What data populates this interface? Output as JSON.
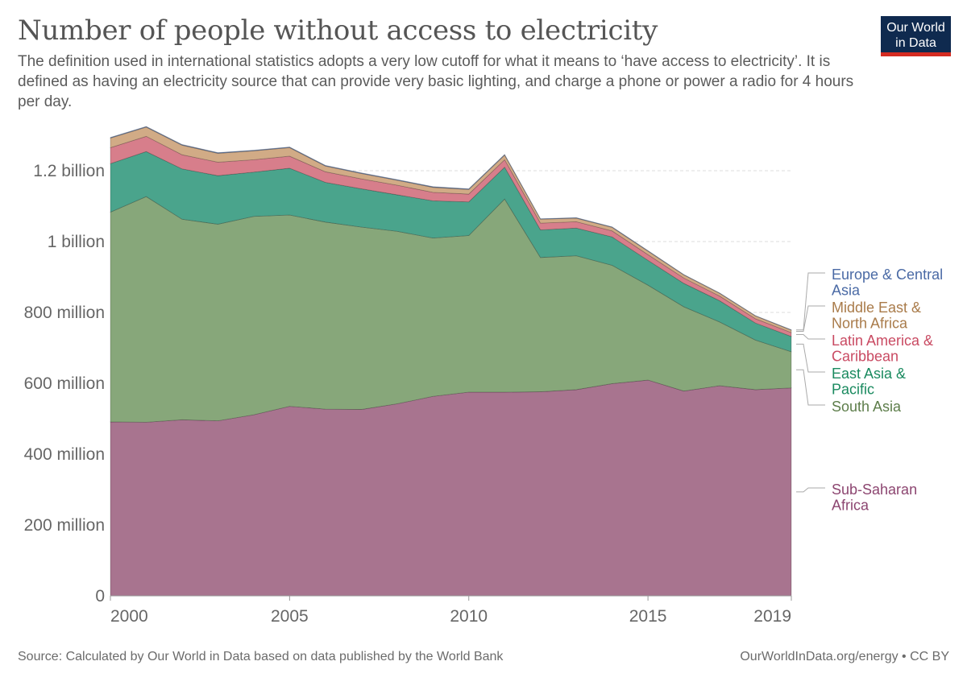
{
  "title": "Number of people without access to electricity",
  "subtitle": "The definition used in international statistics adopts a very low cutoff for what it means to ‘have access to electricity’. It is defined as having an electricity source that can provide very basic lighting, and charge a phone or power a radio for 4 hours per day.",
  "logo": {
    "line1": "Our World",
    "line2": "in Data"
  },
  "footer": {
    "source": "Source: Calculated by Our World in Data based on data published by the World Bank",
    "url": "OurWorldInData.org/energy • CC BY"
  },
  "chart_data": {
    "type": "area",
    "stacked": true,
    "x": [
      2000,
      2001,
      2002,
      2003,
      2004,
      2005,
      2006,
      2007,
      2008,
      2009,
      2010,
      2011,
      2012,
      2013,
      2014,
      2015,
      2016,
      2017,
      2018,
      2019
    ],
    "x_ticks": [
      2000,
      2005,
      2010,
      2015,
      2019
    ],
    "y_ticks": [
      {
        "value": 0,
        "label": "0"
      },
      {
        "value": 200000000,
        "label": "200 million"
      },
      {
        "value": 400000000,
        "label": "400 million"
      },
      {
        "value": 600000000,
        "label": "600 million"
      },
      {
        "value": 800000000,
        "label": "800 million"
      },
      {
        "value": 1000000000,
        "label": "1 billion"
      },
      {
        "value": 1200000000,
        "label": "1.2 billion"
      }
    ],
    "ylim": [
      0,
      1300000000
    ],
    "grid": true,
    "legend_placement": "right",
    "series": [
      {
        "name": "Sub-Saharan Africa",
        "label_lines": [
          "Sub-Saharan",
          "Africa"
        ],
        "color": "#a8748f",
        "text_color": "#8c4570",
        "values": [
          491000000.0,
          490000000.0,
          497000000.0,
          494000000.0,
          511000000.0,
          535000000.0,
          527000000.0,
          526000000.0,
          542000000.0,
          563000000.0,
          575000000.0,
          575000000.0,
          576000000.0,
          582000000.0,
          599000000.0,
          609000000.0,
          578000000.0,
          593000000.0,
          582000000.0,
          587000000.0
        ]
      },
      {
        "name": "South Asia",
        "label_lines": [
          "South Asia"
        ],
        "color": "#87a77a",
        "text_color": "#5d7d4a",
        "values": [
          592000000.0,
          637000000.0,
          566000000.0,
          555000000.0,
          560000000.0,
          540000000.0,
          528000000.0,
          515000000.0,
          487000000.0,
          447000000.0,
          442000000.0,
          545000000.0,
          379000000.0,
          378000000.0,
          334000000.0,
          268000000.0,
          238000000.0,
          180000000.0,
          140000000.0,
          102000000.0
        ]
      },
      {
        "name": "East Asia & Pacific",
        "label_lines": [
          "East Asia &",
          "Pacific"
        ],
        "color": "#4aa48c",
        "text_color": "#1a8a5f",
        "values": [
          137000000.0,
          127000000.0,
          142000000.0,
          137000000.0,
          125000000.0,
          132000000.0,
          112000000.0,
          108000000.0,
          103000000.0,
          105000000.0,
          95000000.0,
          90000000.0,
          78000000.0,
          78000000.0,
          80000000.0,
          70000000.0,
          66000000.0,
          60000000.0,
          48000000.0,
          43000000.0
        ]
      },
      {
        "name": "Latin America & Caribbean",
        "label_lines": [
          "Latin America &",
          "Caribbean"
        ],
        "color": "#d77e8b",
        "text_color": "#c94a62",
        "values": [
          45000000.0,
          43000000.0,
          40000000.0,
          38000000.0,
          35000000.0,
          34000000.0,
          30000000.0,
          28000000.0,
          27000000.0,
          24000000.0,
          22000000.0,
          21000000.0,
          19000000.0,
          18000000.0,
          17000000.0,
          16000000.0,
          15000000.0,
          13000000.0,
          12000000.0,
          11000000.0
        ]
      },
      {
        "name": "Middle East & North Africa",
        "label_lines": [
          "Middle East &",
          "North Africa"
        ],
        "color": "#d1ab86",
        "text_color": "#a97b4a",
        "values": [
          27000000.0,
          26000000.0,
          27000000.0,
          25000000.0,
          25000000.0,
          24000000.0,
          16000000.0,
          15000000.0,
          14000000.0,
          14000000.0,
          13000000.0,
          13000000.0,
          11000000.0,
          10000000.0,
          10000000.0,
          10000000.0,
          9000000.0,
          8000000.0,
          8000000.0,
          7000000.0
        ]
      },
      {
        "name": "Europe & Central Asia",
        "label_lines": [
          "Europe & Central",
          "Asia"
        ],
        "color": "#6f89b8",
        "text_color": "#4a6aa5",
        "values": [
          2000000.0,
          2000000.0,
          2000000.0,
          2000000.0,
          2000000.0,
          2000000.0,
          2000000.0,
          2000000.0,
          2000000.0,
          2000000.0,
          2000000.0,
          2000000.0,
          1500000.0,
          1500000.0,
          1500000.0,
          1500000.0,
          1000000.0,
          1000000.0,
          1000000.0,
          1000000.0
        ]
      }
    ]
  }
}
